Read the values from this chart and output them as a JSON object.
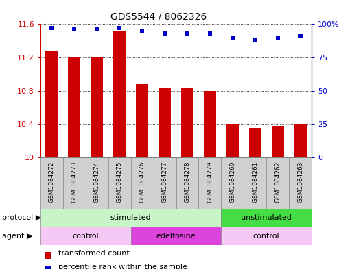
{
  "title": "GDS5544 / 8062326",
  "samples": [
    "GSM1084272",
    "GSM1084273",
    "GSM1084274",
    "GSM1084275",
    "GSM1084276",
    "GSM1084277",
    "GSM1084278",
    "GSM1084279",
    "GSM1084260",
    "GSM1084261",
    "GSM1084262",
    "GSM1084263"
  ],
  "bar_values": [
    11.27,
    11.21,
    11.2,
    11.51,
    10.88,
    10.84,
    10.83,
    10.8,
    10.4,
    10.35,
    10.38,
    10.4
  ],
  "dot_values": [
    97,
    96,
    96,
    97,
    95,
    93,
    93,
    93,
    90,
    88,
    90,
    91
  ],
  "bar_color": "#cc0000",
  "dot_color": "#0000cc",
  "ymin": 10.0,
  "ymax": 11.6,
  "y2min": 0,
  "y2max": 100,
  "yticks": [
    10.0,
    10.4,
    10.8,
    11.2,
    11.6
  ],
  "ytick_labels": [
    "10",
    "10.4",
    "10.8",
    "11.2",
    "11.6"
  ],
  "y2ticks": [
    0,
    25,
    50,
    75,
    100
  ],
  "y2tick_labels": [
    "0",
    "25",
    "50",
    "75",
    "100%"
  ],
  "protocol_groups": [
    {
      "label": "stimulated",
      "start": 0,
      "end": 8,
      "color": "#c8f5c8"
    },
    {
      "label": "unstimulated",
      "start": 8,
      "end": 12,
      "color": "#44dd44"
    }
  ],
  "agent_groups": [
    {
      "label": "control",
      "start": 0,
      "end": 4,
      "color": "#f5c8f5"
    },
    {
      "label": "edelfosine",
      "start": 4,
      "end": 8,
      "color": "#dd44dd"
    },
    {
      "label": "control",
      "start": 8,
      "end": 12,
      "color": "#f5c8f5"
    }
  ],
  "sample_box_color": "#d0d0d0",
  "legend_bar_label": "transformed count",
  "legend_dot_label": "percentile rank within the sample",
  "protocol_label": "protocol",
  "agent_label": "agent",
  "bar_width": 0.55
}
